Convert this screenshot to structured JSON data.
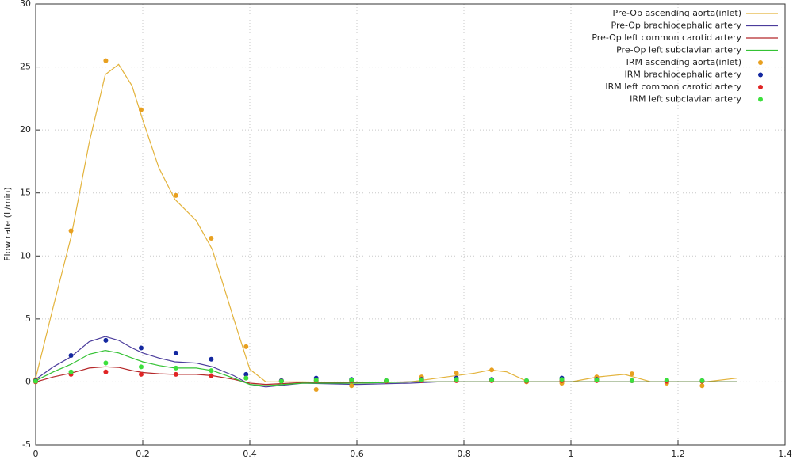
{
  "chart_data": {
    "type": "line",
    "ylabel": "Flow rate (L/min)",
    "xlim": [
      0,
      1.4
    ],
    "xticks": [
      0,
      0.2,
      0.4,
      0.6,
      0.8,
      1,
      1.2,
      1.4
    ],
    "ylim": [
      -5,
      30
    ],
    "yticks": [
      -5,
      0,
      5,
      10,
      15,
      20,
      25,
      30
    ],
    "grid": true,
    "legend": "top-right",
    "series": [
      {
        "name": "Pre-Op ascending aorta(inlet)",
        "mode": "line",
        "color": "#e3b33c",
        "x": [
          0,
          0.033,
          0.066,
          0.1,
          0.13,
          0.155,
          0.18,
          0.2,
          0.23,
          0.26,
          0.3,
          0.33,
          0.37,
          0.4,
          0.43,
          0.5,
          0.6,
          0.7,
          0.75,
          0.82,
          0.85,
          0.88,
          0.92,
          1.0,
          1.05,
          1.1,
          1.15,
          1.25,
          1.31
        ],
        "values": [
          0.3,
          6,
          11.5,
          19,
          24.4,
          25.2,
          23.5,
          20.8,
          17,
          14.5,
          12.8,
          10.5,
          5,
          1,
          0,
          0,
          -0.1,
          0,
          0.3,
          0.7,
          0.95,
          0.8,
          0,
          0,
          0.4,
          0.6,
          0,
          0,
          0.3
        ]
      },
      {
        "name": "Pre-Op brachiocephalic artery",
        "mode": "line",
        "color": "#4b3c9c",
        "x": [
          0,
          0.033,
          0.066,
          0.1,
          0.13,
          0.155,
          0.18,
          0.2,
          0.23,
          0.26,
          0.3,
          0.33,
          0.37,
          0.4,
          0.43,
          0.5,
          0.6,
          0.7,
          0.75,
          0.82,
          0.85,
          0.88,
          0.92,
          1.0,
          1.05,
          1.1,
          1.15,
          1.25,
          1.31
        ],
        "values": [
          0.2,
          1.2,
          2,
          3.2,
          3.6,
          3.3,
          2.7,
          2.3,
          1.9,
          1.6,
          1.5,
          1.2,
          0.5,
          -0.2,
          -0.4,
          -0.1,
          -0.2,
          -0.1,
          0,
          0,
          0,
          0,
          0,
          0,
          0,
          0,
          0,
          0,
          0
        ]
      },
      {
        "name": "Pre-Op left common carotid artery",
        "mode": "line",
        "color": "#b5282a",
        "x": [
          0,
          0.033,
          0.066,
          0.1,
          0.13,
          0.155,
          0.18,
          0.2,
          0.23,
          0.26,
          0.3,
          0.33,
          0.37,
          0.4,
          0.43,
          0.5,
          0.6,
          0.7,
          0.75,
          0.82,
          0.85,
          0.88,
          0.92,
          1.0,
          1.05,
          1.1,
          1.15,
          1.25,
          1.31
        ],
        "values": [
          0,
          0.4,
          0.7,
          1.1,
          1.2,
          1.15,
          0.9,
          0.75,
          0.65,
          0.6,
          0.6,
          0.5,
          0.2,
          -0.1,
          -0.2,
          -0.05,
          -0.05,
          0,
          0,
          0,
          0,
          0,
          0,
          0,
          0,
          0,
          0,
          0,
          0
        ]
      },
      {
        "name": "Pre-Op left subclavian artery",
        "mode": "line",
        "color": "#34c234",
        "x": [
          0,
          0.033,
          0.066,
          0.1,
          0.13,
          0.155,
          0.18,
          0.2,
          0.23,
          0.26,
          0.3,
          0.33,
          0.37,
          0.4,
          0.43,
          0.5,
          0.6,
          0.7,
          0.75,
          0.82,
          0.85,
          0.88,
          0.92,
          1.0,
          1.05,
          1.1,
          1.15,
          1.25,
          1.31
        ],
        "values": [
          0.1,
          0.8,
          1.4,
          2.2,
          2.5,
          2.3,
          1.9,
          1.6,
          1.3,
          1.1,
          1.1,
          0.9,
          0.3,
          -0.2,
          -0.3,
          -0.1,
          -0.1,
          0,
          0,
          0,
          0,
          0,
          0,
          0,
          0,
          0,
          0,
          0,
          0
        ]
      },
      {
        "name": "IRM ascending aorta(inlet)",
        "mode": "points",
        "color": "#e8a020",
        "x": [
          0,
          0.066,
          0.131,
          0.197,
          0.262,
          0.328,
          0.393,
          0.459,
          0.524,
          0.59,
          0.655,
          0.721,
          0.786,
          0.852,
          0.917,
          0.983,
          1.048,
          1.114,
          1.179,
          1.245
        ],
        "values": [
          0.2,
          12,
          25.5,
          21.6,
          14.8,
          11.4,
          2.8,
          0.1,
          -0.6,
          -0.3,
          0.1,
          0.4,
          0.7,
          0.95,
          0,
          -0.1,
          0.4,
          0.65,
          -0.1,
          -0.3
        ]
      },
      {
        "name": "IRM brachiocephalic artery",
        "mode": "points",
        "color": "#1428a0",
        "x": [
          0,
          0.066,
          0.131,
          0.197,
          0.262,
          0.328,
          0.393,
          0.459,
          0.524,
          0.59,
          0.655,
          0.721,
          0.786,
          0.852,
          0.917,
          0.983,
          1.048,
          1.114,
          1.179,
          1.245
        ],
        "values": [
          0.1,
          2.1,
          3.3,
          2.7,
          2.3,
          1.8,
          0.6,
          0.1,
          0.3,
          0.2,
          0.1,
          0.2,
          0.3,
          0.2,
          0.1,
          0.3,
          0.2,
          0.1,
          0.1,
          0.1
        ]
      },
      {
        "name": "IRM left common carotid artery",
        "mode": "points",
        "color": "#e02424",
        "x": [
          0,
          0.066,
          0.131,
          0.197,
          0.262,
          0.328,
          0.393,
          0.459,
          0.524,
          0.59,
          0.655,
          0.721,
          0.786,
          0.852,
          0.917,
          0.983,
          1.048,
          1.114,
          1.179,
          1.245
        ],
        "values": [
          0,
          0.6,
          0.8,
          0.6,
          0.6,
          0.5,
          0.3,
          0.05,
          0.1,
          0.1,
          0.05,
          0.1,
          0.1,
          0.1,
          0.05,
          0.1,
          0.1,
          0.1,
          0.05,
          0.05
        ]
      },
      {
        "name": "IRM left subclavian artery",
        "mode": "points",
        "color": "#3ce03c",
        "x": [
          0,
          0.066,
          0.131,
          0.197,
          0.262,
          0.328,
          0.393,
          0.459,
          0.524,
          0.59,
          0.655,
          0.721,
          0.786,
          0.852,
          0.917,
          0.983,
          1.048,
          1.114,
          1.179,
          1.245
        ],
        "values": [
          0.05,
          0.8,
          1.5,
          1.2,
          1.1,
          0.9,
          0.3,
          0.05,
          0.15,
          0.15,
          0.1,
          0.15,
          0.2,
          0.15,
          0.1,
          0.2,
          0.15,
          0.1,
          0.15,
          0.1
        ]
      }
    ]
  }
}
